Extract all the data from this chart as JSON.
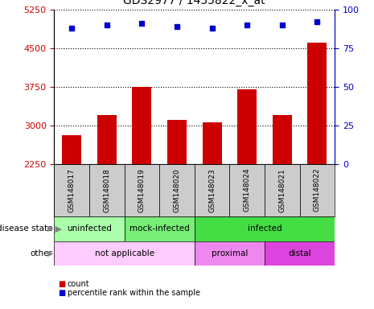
{
  "title": "GDS2977 / 1455822_x_at",
  "samples": [
    "GSM148017",
    "GSM148018",
    "GSM148019",
    "GSM148020",
    "GSM148023",
    "GSM148024",
    "GSM148021",
    "GSM148022"
  ],
  "counts": [
    2800,
    3200,
    3750,
    3100,
    3050,
    3700,
    3200,
    4600
  ],
  "percentile_ranks": [
    88,
    90,
    91,
    89,
    88,
    90,
    90,
    92
  ],
  "ylim_left": [
    2250,
    5250
  ],
  "ylim_right": [
    0,
    100
  ],
  "yticks_left": [
    2250,
    3000,
    3750,
    4500,
    5250
  ],
  "yticks_right": [
    0,
    25,
    50,
    75,
    100
  ],
  "bar_color": "#cc0000",
  "dot_color": "#0000cc",
  "disease_colors": {
    "uninfected": "#aaffaa",
    "mock-infected": "#77ee77",
    "infected": "#44dd44"
  },
  "other_colors": {
    "not applicable": "#ffccff",
    "proximal": "#ee88ee",
    "distal": "#dd44dd"
  },
  "left_label_color": "#cc0000",
  "right_label_color": "#0000cc",
  "sample_bg": "#cccccc"
}
